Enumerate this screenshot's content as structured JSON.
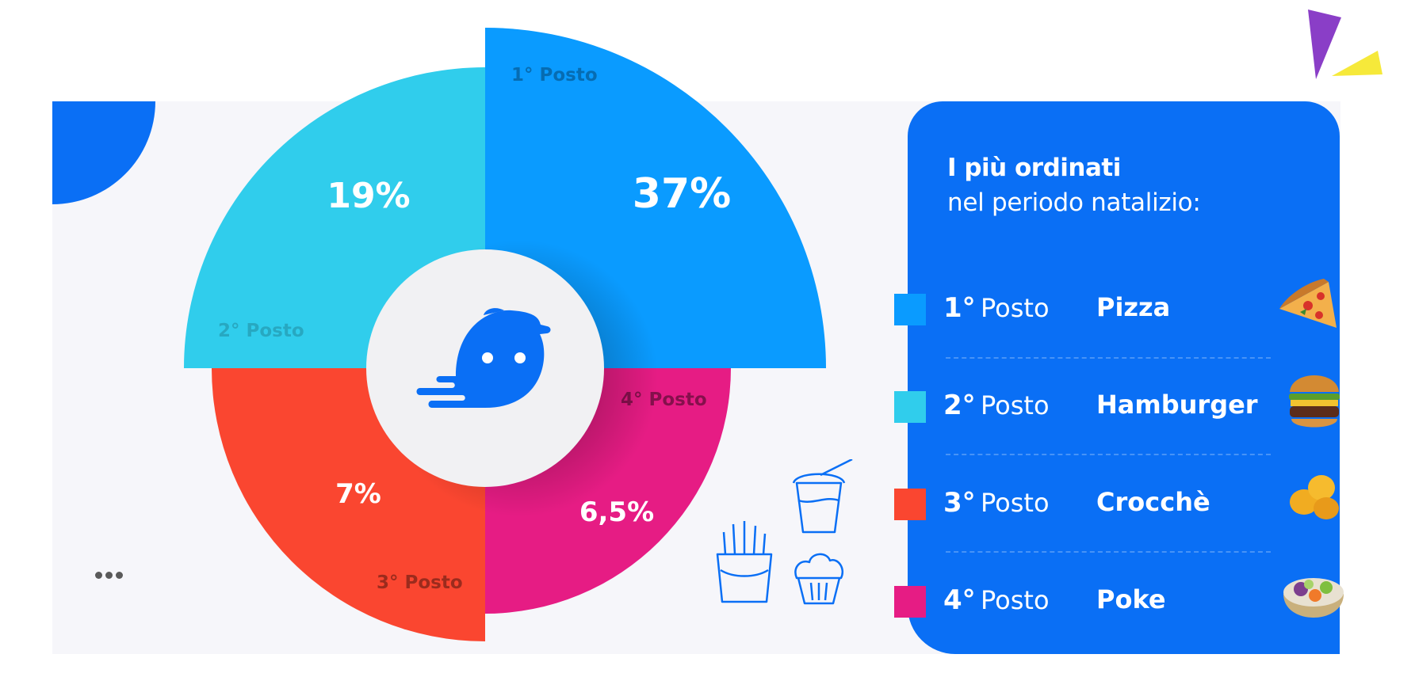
{
  "legend": {
    "title": "I più ordinati",
    "subtitle": "nel periodo natalizio:",
    "items": [
      {
        "rank": "1°",
        "posto": "Posto",
        "food": "Pizza",
        "color": "#0a9bff"
      },
      {
        "rank": "2°",
        "posto": "Posto",
        "food": "Hamburger",
        "color": "#30cdec"
      },
      {
        "rank": "3°",
        "posto": "Posto",
        "food": "Crocchè",
        "color": "#fa4630"
      },
      {
        "rank": "4°",
        "posto": "Posto",
        "food": "Poke",
        "color": "#e61c84"
      }
    ]
  },
  "colors": {
    "brand_blue": "#0a6ff5",
    "panel_bg": "#f6f6fa",
    "center_circle": "#f1f1f3",
    "mascot": "#0a6ff5"
  },
  "icons": [
    "delivery-mascot-icon",
    "drink-cup-icon",
    "french-fries-icon",
    "muffin-icon",
    "dots-icon",
    "pizza-image",
    "hamburger-image",
    "croquettes-image",
    "poke-bowl-image"
  ],
  "chart_data": {
    "type": "pie",
    "title": "",
    "slices": [
      {
        "label": "1° Posto",
        "value": 37,
        "display": "37%",
        "color": "#0a9bff"
      },
      {
        "label": "2° Posto",
        "value": 19,
        "display": "19%",
        "color": "#30cdec"
      },
      {
        "label": "3° Posto",
        "value": 7,
        "display": "7%",
        "color": "#fa4630"
      },
      {
        "label": "4° Posto",
        "value": 6.5,
        "display": "6,5%",
        "color": "#e61c84"
      }
    ]
  }
}
